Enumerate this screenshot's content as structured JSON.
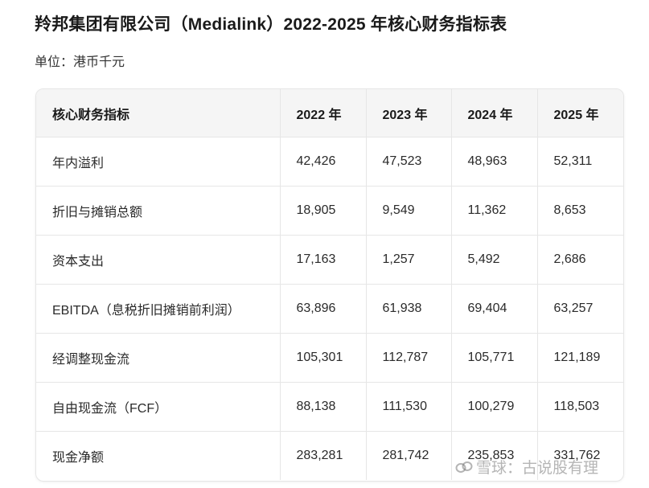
{
  "title": "羚邦集团有限公司（Medialink）2022-2025 年核心财务指标表",
  "unit": "单位：港币千元",
  "table": {
    "headers": [
      "核心财务指标",
      "2022 年",
      "2023 年",
      "2024 年",
      "2025 年"
    ],
    "rows": [
      [
        "年内溢利",
        "42,426",
        "47,523",
        "48,963",
        "52,311"
      ],
      [
        "折旧与摊销总额",
        "18,905",
        "9,549",
        "11,362",
        "8,653"
      ],
      [
        "资本支出",
        "17,163",
        "1,257",
        "5,492",
        "2,686"
      ],
      [
        "EBITDA（息税折旧摊销前利润）",
        "63,896",
        "61,938",
        "69,404",
        "63,257"
      ],
      [
        "经调整现金流",
        "105,301",
        "112,787",
        "105,771",
        "121,189"
      ],
      [
        "自由现金流（FCF）",
        "88,138",
        "111,530",
        "100,279",
        "118,503"
      ],
      [
        "现金净额",
        "283,281",
        "281,742",
        "235,853",
        "331,762"
      ]
    ]
  },
  "watermark": {
    "text": "雪球：古说股有理",
    "icon": "snowball-logo-icon"
  }
}
